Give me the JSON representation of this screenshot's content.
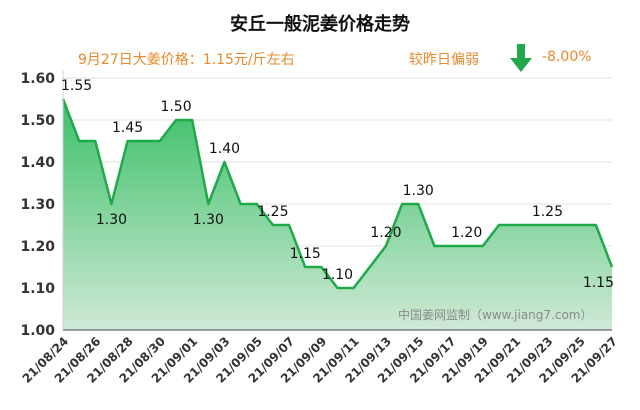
{
  "header": {
    "title": "安丘一般泥姜价格走势",
    "price_note": "9月27日大姜价格：1.15元/斤左右",
    "change_label": "较昨日偏弱",
    "change_value": "-8.00%"
  },
  "watermark": "中国姜网监制（www.jiang7.com）",
  "colors": {
    "line": "#1faa4a",
    "fill_top": "#3cc068",
    "fill_bottom": "#cfe9d6",
    "arrow": "#22a84a",
    "accent_text": "#e8892a"
  },
  "chart_data": {
    "type": "area",
    "title": "安丘一般泥姜价格走势",
    "xlabel": "",
    "ylabel": "",
    "ylim": [
      1.0,
      1.6
    ],
    "yticks": [
      "1.00",
      "1.10",
      "1.20",
      "1.30",
      "1.40",
      "1.50",
      "1.60"
    ],
    "grid": true,
    "x": [
      "21/08/24",
      "21/08/25",
      "21/08/26",
      "21/08/27",
      "21/08/28",
      "21/08/29",
      "21/08/30",
      "21/08/31",
      "21/09/01",
      "21/09/02",
      "21/09/03",
      "21/09/04",
      "21/09/05",
      "21/09/06",
      "21/09/07",
      "21/09/08",
      "21/09/09",
      "21/09/10",
      "21/09/11",
      "21/09/12",
      "21/09/13",
      "21/09/14",
      "21/09/15",
      "21/09/16",
      "21/09/17",
      "21/09/18",
      "21/09/19",
      "21/09/20",
      "21/09/21",
      "21/09/22",
      "21/09/23",
      "21/09/24",
      "21/09/25",
      "21/09/26",
      "21/09/27"
    ],
    "xtick_labels": [
      "21/08/24",
      "21/08/26",
      "21/08/28",
      "21/08/30",
      "21/09/01",
      "21/09/03",
      "21/09/05",
      "21/09/07",
      "21/09/09",
      "21/09/11",
      "21/09/13",
      "21/09/15",
      "21/09/17",
      "21/09/19",
      "21/09/21",
      "21/09/23",
      "21/09/25",
      "21/09/27"
    ],
    "values": [
      1.55,
      1.45,
      1.45,
      1.3,
      1.45,
      1.45,
      1.45,
      1.5,
      1.5,
      1.3,
      1.4,
      1.3,
      1.3,
      1.25,
      1.25,
      1.15,
      1.15,
      1.1,
      1.1,
      1.15,
      1.2,
      1.3,
      1.3,
      1.2,
      1.2,
      1.2,
      1.2,
      1.25,
      1.25,
      1.25,
      1.25,
      1.25,
      1.25,
      1.25,
      1.15
    ],
    "data_labels": [
      {
        "index": 0,
        "text": "1.55"
      },
      {
        "index": 3,
        "text": "1.30"
      },
      {
        "index": 4,
        "text": "1.45"
      },
      {
        "index": 7,
        "text": "1.50"
      },
      {
        "index": 9,
        "text": "1.30"
      },
      {
        "index": 10,
        "text": "1.40"
      },
      {
        "index": 13,
        "text": "1.25"
      },
      {
        "index": 15,
        "text": "1.15"
      },
      {
        "index": 17,
        "text": "1.10"
      },
      {
        "index": 20,
        "text": "1.20"
      },
      {
        "index": 22,
        "text": "1.30"
      },
      {
        "index": 25,
        "text": "1.20"
      },
      {
        "index": 30,
        "text": "1.25"
      },
      {
        "index": 34,
        "text": "1.15"
      }
    ]
  }
}
